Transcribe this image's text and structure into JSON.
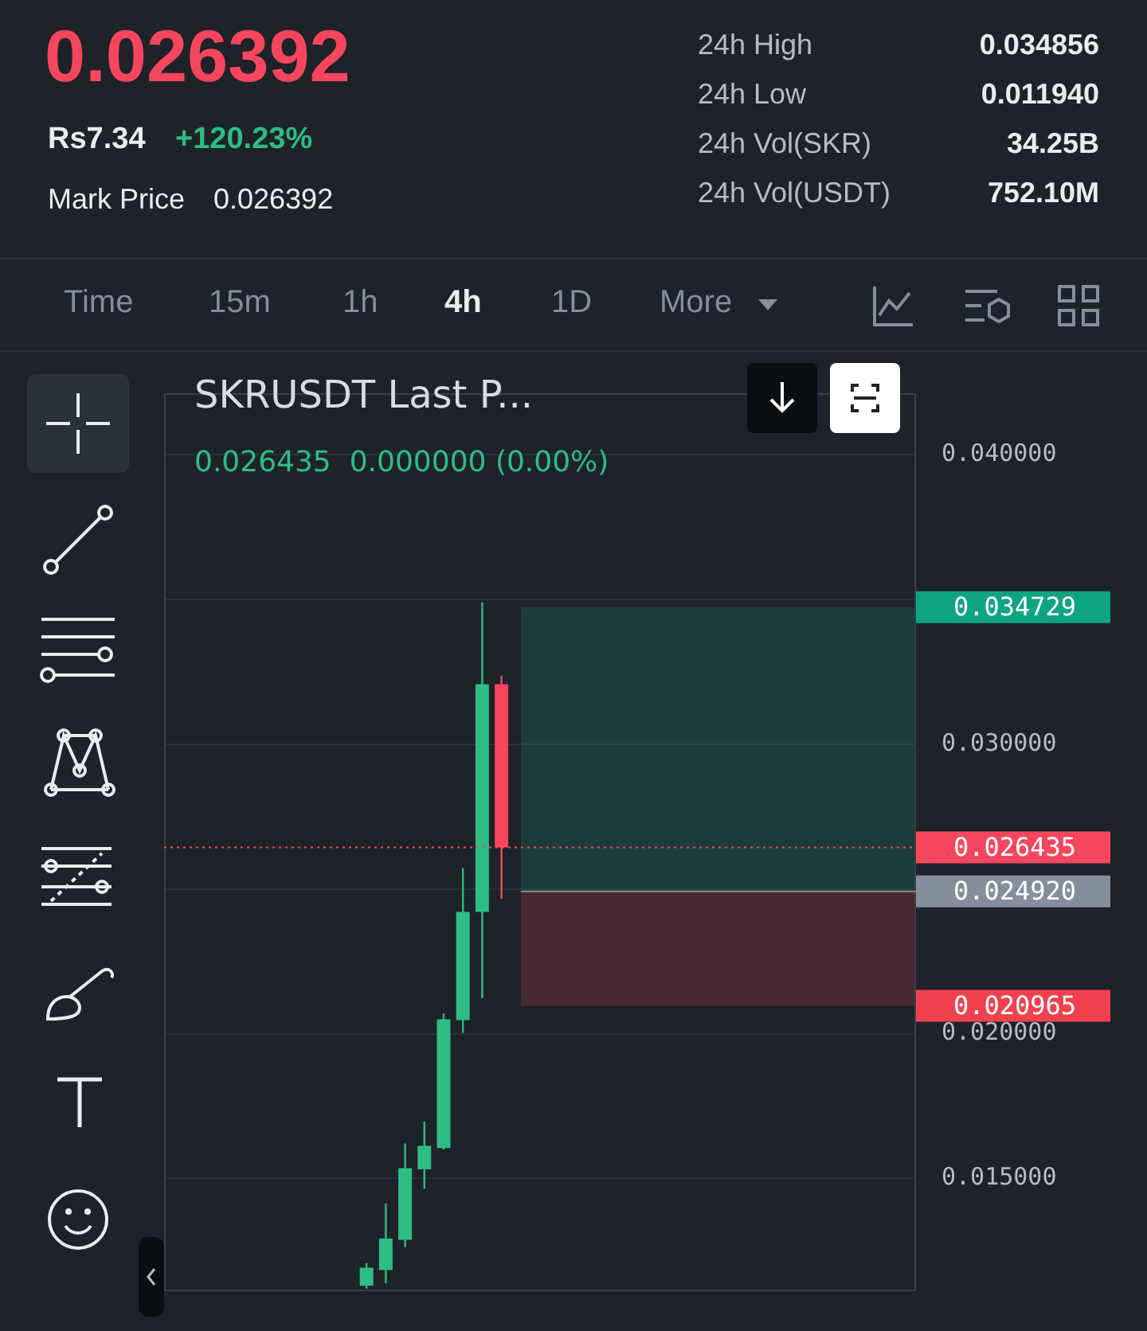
{
  "chart_data": {
    "type": "candlestick",
    "title": "SKRUSDT Last P...",
    "subtitle": "0.026435  0.000000 (0.00%)",
    "annotations": [
      "0.026392",
      "Rs7.34",
      "+120.23%",
      "Mark Price",
      "0.026392",
      "24h High",
      "0.034856",
      "24h Low",
      "0.011940",
      "24h Vol(SKR)",
      "34.25B",
      "24h Vol(USDT)",
      "752.10M",
      "Time",
      "15m",
      "1h",
      "4h",
      "1D",
      "More"
    ],
    "categories": [
      null,
      null,
      null,
      null,
      null,
      null,
      null,
      null,
      null,
      null,
      null,
      null,
      null,
      null,
      null,
      null,
      null,
      null,
      null,
      null,
      null,
      null,
      null,
      null,
      null,
      null,
      null,
      null,
      null,
      null,
      null,
      null,
      null,
      null,
      null,
      null,
      null,
      null,
      null
    ],
    "ohlc": [
      null,
      null,
      null,
      null,
      null,
      null,
      null,
      null,
      null,
      null,
      [
        0.0113,
        0.01208,
        0.0112,
        0.01192
      ],
      [
        0.01184,
        0.01414,
        0.01138,
        0.01293
      ],
      [
        0.01288,
        0.01621,
        0.01263,
        0.01536
      ],
      [
        0.01532,
        0.01697,
        0.01465,
        0.01613
      ],
      [
        0.01605,
        0.0207,
        0.016,
        0.0205
      ],
      [
        0.02047,
        0.02572,
        0.02003,
        0.02421
      ],
      [
        0.02421,
        0.0349,
        0.02123,
        0.03207
      ],
      [
        0.03207,
        0.03237,
        0.02466,
        0.026435
      ],
      null,
      null,
      null,
      null,
      null,
      null,
      null,
      null,
      null,
      null,
      null,
      null,
      null,
      null,
      null,
      null,
      null,
      null,
      null,
      null,
      null
    ],
    "colors": [
      null,
      null,
      null,
      null,
      null,
      null,
      null,
      null,
      null,
      null,
      "#2ebd85",
      "#2ebd85",
      "#2ebd85",
      "#2ebd85",
      "#2ebd85",
      "#2ebd85",
      "#2ebd85",
      "#f6465d",
      null,
      null,
      null,
      null,
      null,
      null,
      null,
      null,
      null,
      null,
      null,
      null,
      null,
      null,
      null,
      null,
      null,
      null,
      null,
      null,
      null
    ],
    "ylim": [
      0.01111,
      0.04212
    ],
    "yticks": [
      {
        "value": 0.015,
        "label": "0.015000"
      },
      {
        "value": 0.02,
        "label": "0.020000"
      },
      {
        "value": 0.025,
        "label": null
      },
      {
        "value": 0.03,
        "label": "0.030000"
      },
      {
        "value": 0.035,
        "label": null
      },
      {
        "value": 0.04,
        "label": "0.040000"
      }
    ],
    "grid": "y",
    "ref_lines": [
      {
        "axis": "y",
        "value": 0.026435,
        "label": "0.026435",
        "color": "#f6465d",
        "line_style": "dotted"
      },
      {
        "axis": "y",
        "value": 0.02492,
        "label": "0.024920",
        "color": "#848e9c",
        "line_style": "solid"
      }
    ],
    "bands": [
      {
        "axis": "y",
        "from": 0.02492,
        "to": 0.034729,
        "label": "0.034729",
        "color": "#0ea481"
      },
      {
        "axis": "y",
        "from": 0.020965,
        "to": 0.02492,
        "label": "0.020965",
        "color": "#f0414f"
      }
    ]
  }
}
